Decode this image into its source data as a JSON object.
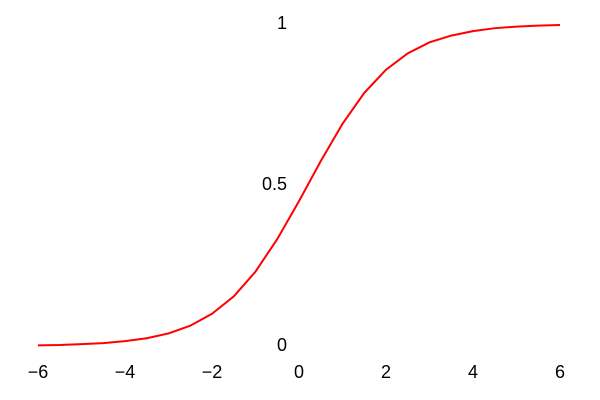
{
  "chart_data": {
    "type": "line",
    "x": [
      -6,
      -5.5,
      -5,
      -4.5,
      -4,
      -3.5,
      -3,
      -2.5,
      -2,
      -1.5,
      -1,
      -0.5,
      0,
      0.5,
      1,
      1.5,
      2,
      2.5,
      3,
      3.5,
      4,
      4.5,
      5,
      5.5,
      6
    ],
    "series": [
      {
        "color": "#ff0000",
        "values": [
          0.002,
          0.003,
          0.006,
          0.009,
          0.015,
          0.024,
          0.039,
          0.063,
          0.1,
          0.154,
          0.231,
          0.332,
          0.45,
          0.574,
          0.69,
          0.786,
          0.858,
          0.909,
          0.943,
          0.964,
          0.978,
          0.987,
          0.992,
          0.995,
          0.997
        ]
      }
    ],
    "xlim": [
      -6,
      6
    ],
    "ylim": [
      0,
      1
    ],
    "xticks": [
      {
        "value": -6,
        "label": "−6"
      },
      {
        "value": -4,
        "label": "−4"
      },
      {
        "value": -2,
        "label": "−2"
      },
      0,
      2,
      4,
      6
    ],
    "yticks": [
      0,
      0.5,
      1
    ],
    "grid": false
  }
}
